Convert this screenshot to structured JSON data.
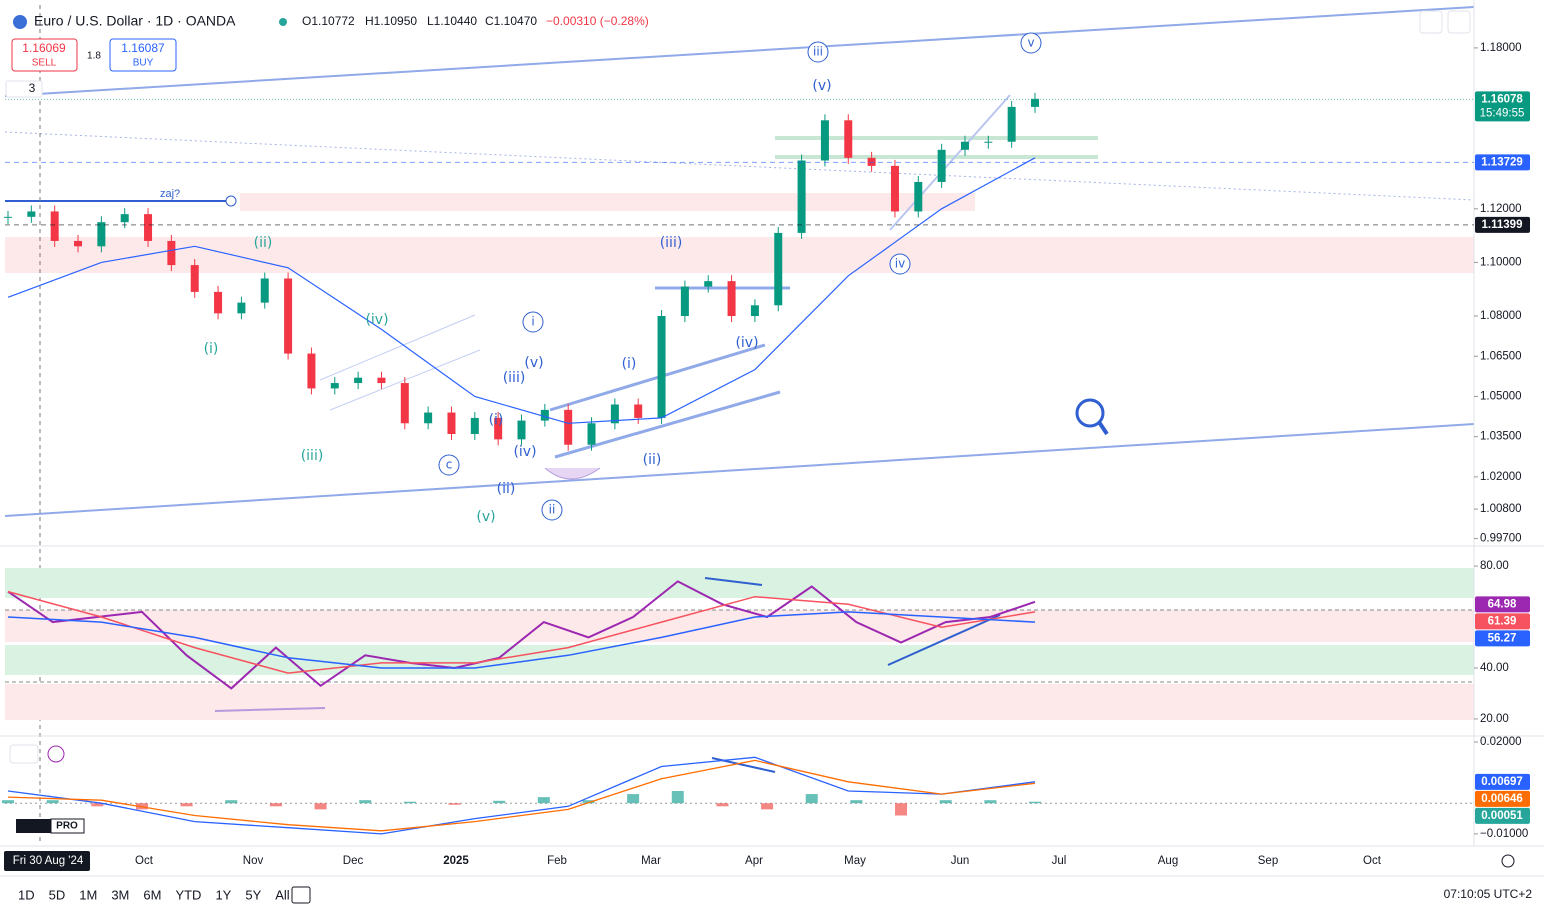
{
  "header": {
    "symbol": "Euro / U.S. Dollar · 1D · OANDA",
    "open": "O1.10772",
    "high": "H1.10950",
    "low": "L1.10440",
    "close": "C1.10470",
    "change": "−0.00310 (−0.28%)"
  },
  "trade": {
    "sell_price": "1.16069",
    "sell": "SELL",
    "spread": "1.8",
    "buy_price": "1.16087",
    "buy": "BUY"
  },
  "layers": "3",
  "drawing_label": "zaj?",
  "chart_data": [
    {
      "type": "candlestick",
      "values": [
        1.117,
        1.119,
        1.108,
        1.106,
        1.115,
        1.118,
        1.108,
        1.099,
        1.089,
        1.081,
        1.085,
        1.094,
        1.066,
        1.053,
        1.055,
        1.057,
        1.055,
        1.04,
        1.044,
        1.036,
        1.042,
        1.034,
        1.041,
        1.045,
        1.032,
        1.04,
        1.047,
        1.042,
        1.08,
        1.091,
        1.093,
        1.08,
        1.084,
        1.111,
        1.138,
        1.153,
        1.139,
        1.136,
        1.119,
        1.13,
        1.142,
        1.145,
        1.145,
        1.158,
        1.161
      ],
      "up_color": "#089981",
      "down_color": "#f23645",
      "moving_average": {
        "color": "#2962ff",
        "values": [
          1.087,
          1.1,
          1.106,
          1.098,
          1.075,
          1.05,
          1.04,
          1.042,
          1.06,
          1.095,
          1.12,
          1.139
        ]
      },
      "ylim": [
        0.9946,
        1.196
      ],
      "yticks": [
        {
          "value": 1.18,
          "label": "1.18000"
        },
        {
          "value": 1.12,
          "label": "1.12000"
        },
        {
          "value": 1.1,
          "label": "1.10000"
        },
        {
          "value": 1.08,
          "label": "1.08000"
        },
        {
          "value": 1.065,
          "label": "1.06500"
        },
        {
          "value": 1.05,
          "label": "1.05000"
        },
        {
          "value": 1.035,
          "label": "1.03500"
        },
        {
          "value": 1.02,
          "label": "1.02000"
        },
        {
          "value": 1.008,
          "label": "1.00800"
        },
        {
          "value": 0.997,
          "label": "0.99700"
        }
      ],
      "price_badges": [
        {
          "value": 1.16078,
          "sub": "15:49:55",
          "color": "#089981"
        },
        {
          "value": 1.13729,
          "color": "#2962ff"
        },
        {
          "value": 1.11399,
          "color": "#131722"
        }
      ],
      "annotations": [
        "(ii)",
        "(i)",
        "(iv)",
        "(iii)",
        "(v)",
        "c",
        "(ii)",
        "(iv)",
        "(i)",
        "(iii)",
        "(v)",
        "i",
        "ii",
        "(ii)",
        "(i)",
        "(iv)",
        "(iii)",
        "iii",
        "(v)",
        "v",
        "iv"
      ],
      "date_labels": [
        "Fri 30 Aug '24",
        "Oct",
        "Nov",
        "Dec",
        "2025",
        "Feb",
        "Mar",
        "Apr",
        "May",
        "Jun",
        "Jul",
        "Aug",
        "Sep",
        "Oct"
      ]
    },
    {
      "type": "line",
      "series": [
        {
          "color": "#9c27b0",
          "values": [
            70,
            58,
            60,
            62,
            45,
            32,
            48,
            33,
            45,
            42,
            40,
            44,
            58,
            52,
            60,
            74,
            65,
            60,
            72,
            58,
            50,
            58,
            60,
            66
          ]
        },
        {
          "color": "#f7525f",
          "values": [
            70,
            60,
            48,
            38,
            42,
            42,
            48,
            58,
            68,
            65,
            56,
            62
          ]
        },
        {
          "color": "#2962ff",
          "values": [
            60,
            58,
            52,
            44,
            40,
            40,
            45,
            52,
            60,
            62,
            60,
            58
          ]
        }
      ],
      "ylim": [
        13.7,
        87.1
      ],
      "yticks": [
        {
          "value": 80,
          "label": "80.00"
        },
        {
          "value": 40,
          "label": "40.00"
        },
        {
          "value": 20,
          "label": "20.00"
        }
      ],
      "badges": [
        {
          "value": 64.98,
          "color": "#9c27b0"
        },
        {
          "value": 61.39,
          "color": "#f7525f"
        },
        {
          "value": 56.27,
          "color": "#2962ff"
        }
      ]
    },
    {
      "type": "macd",
      "histogram": {
        "values": [
          0.001,
          0.001,
          -0.001,
          -0.002,
          -0.001,
          0.001,
          -0.001,
          -0.002,
          0.001,
          0.0005,
          -0.0005,
          0.0008,
          0.002,
          0.001,
          0.003,
          0.004,
          -0.001,
          -0.002,
          0.003,
          0.001,
          -0.004,
          0.001,
          0.001,
          0.0005
        ],
        "up_color": "#26a69a",
        "down_color": "#ef5350"
      },
      "series": [
        {
          "color": "#2962ff",
          "values": [
            0.004,
            0.0,
            -0.006,
            -0.008,
            -0.01,
            -0.005,
            -0.001,
            0.012,
            0.015,
            0.004,
            0.003,
            0.007
          ]
        },
        {
          "color": "#ff6d00",
          "values": [
            0.002,
            0.001,
            -0.004,
            -0.007,
            -0.009,
            -0.006,
            -0.002,
            0.008,
            0.014,
            0.007,
            0.003,
            0.0065
          ]
        }
      ],
      "ylim": [
        -0.012,
        0.0213
      ],
      "yticks": [
        {
          "value": 0.02,
          "label": "0.02000"
        },
        {
          "value": -0.01,
          "label": "−0.01000"
        }
      ],
      "badges": [
        {
          "value": 0.00697,
          "color": "#2962ff"
        },
        {
          "value": 0.00646,
          "color": "#ff6d00"
        },
        {
          "value": 0.00051,
          "color": "#26a69a"
        }
      ]
    }
  ],
  "toolbar": {
    "timeframes": [
      "1D",
      "5D",
      "1M",
      "3M",
      "6M",
      "YTD",
      "1Y",
      "5Y",
      "All"
    ],
    "clock": "07:10:05 UTC+2",
    "logo_badge": "PRO"
  }
}
